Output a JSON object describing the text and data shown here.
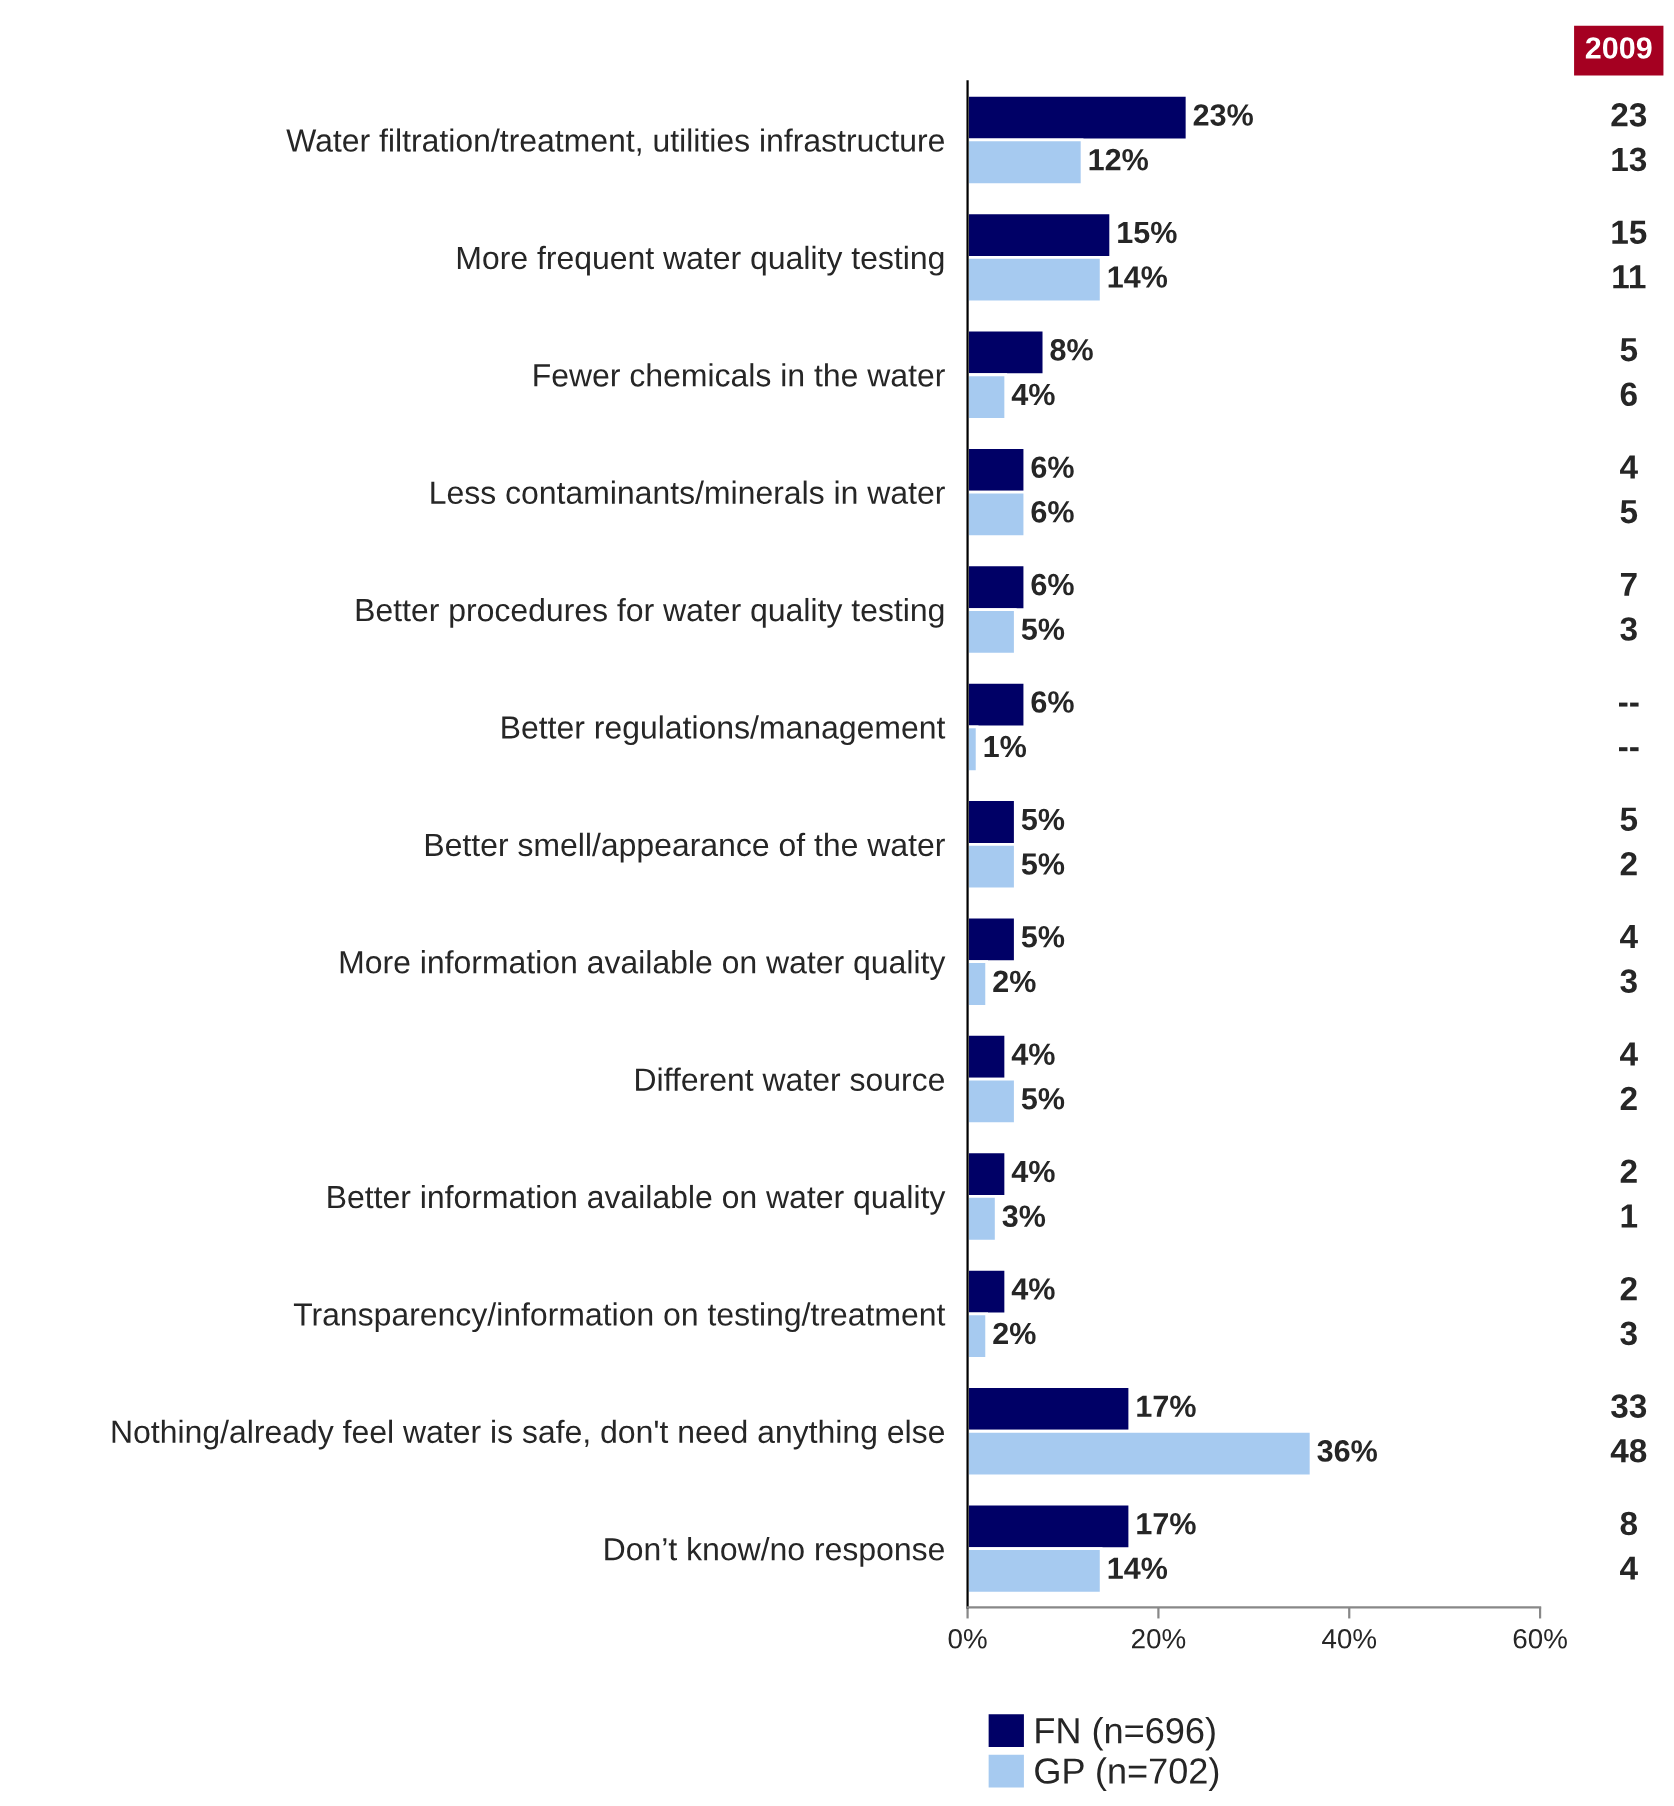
{
  "chart_data": {
    "type": "bar",
    "orientation": "horizontal",
    "categories": [
      "Water filtration/treatment, utilities infrastructure",
      "More frequent water quality testing",
      "Fewer chemicals in the water",
      "Less contaminants/minerals in water",
      "Better procedures for water quality testing",
      "Better regulations/management",
      "Better smell/appearance of the water",
      "More information available on water quality",
      "Different water source",
      "Better information available on water quality",
      "Transparency/information on testing/treatment",
      "Nothing/already feel water is safe, don't need anything else",
      "Don’t know/no response"
    ],
    "series": [
      {
        "name": "FN (n=696)",
        "color": "#000066",
        "values": [
          23,
          15,
          8,
          6,
          6,
          6,
          5,
          5,
          4,
          4,
          4,
          17,
          17
        ],
        "value_labels": [
          "23%",
          "15%",
          "8%",
          "6%",
          "6%",
          "6%",
          "5%",
          "5%",
          "4%",
          "4%",
          "4%",
          "17%",
          "17%"
        ]
      },
      {
        "name": "GP (n=702)",
        "color": "#a6caf0",
        "values": [
          12,
          14,
          4,
          6,
          5,
          1,
          5,
          2,
          5,
          3,
          2,
          36,
          14
        ],
        "value_labels": [
          "12%",
          "14%",
          "4%",
          "6%",
          "5%",
          "1%",
          "5%",
          "2%",
          "5%",
          "3%",
          "2%",
          "36%",
          "14%"
        ]
      }
    ],
    "xlim": [
      0,
      60
    ],
    "xticks": [
      {
        "value": 0,
        "label": "0%"
      },
      {
        "value": 20,
        "label": "20%"
      },
      {
        "value": 40,
        "label": "40%"
      },
      {
        "value": 60,
        "label": "60%"
      }
    ],
    "grid": false,
    "legend": "bottom",
    "annotations": [
      "2009",
      "23",
      "13",
      "15",
      "11",
      "5",
      "6",
      "4",
      "5",
      "7",
      "3",
      "--",
      "--",
      "5",
      "2",
      "4",
      "3",
      "4",
      "2",
      "2",
      "1",
      "2",
      "3",
      "33",
      "48",
      "8",
      "4"
    ]
  }
}
